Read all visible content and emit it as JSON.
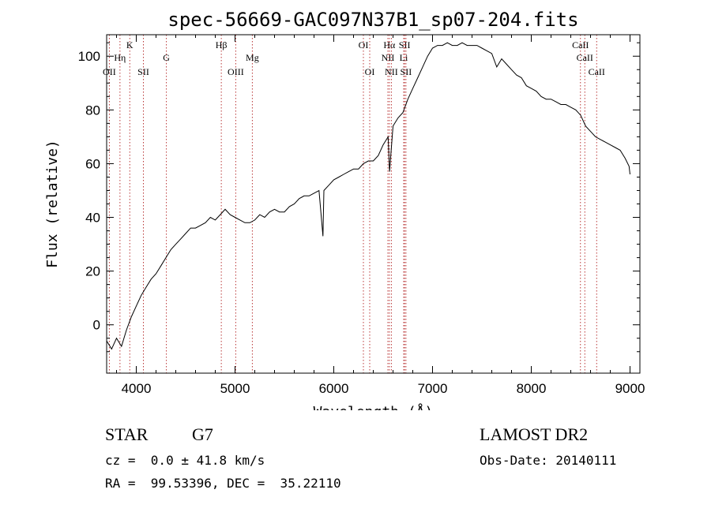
{
  "chart_data": {
    "type": "line",
    "title": "spec-56669-GAC097N37B1_sp07-204.fits",
    "xlabel": "Wavelength (Å)",
    "ylabel": "Flux (relative)",
    "xlim": [
      3700,
      9100
    ],
    "ylim": [
      -18,
      108
    ],
    "x_ticks": [
      4000,
      5000,
      6000,
      7000,
      8000,
      9000
    ],
    "y_ticks": [
      0,
      20,
      40,
      60,
      80,
      100
    ],
    "grid": false,
    "line_color": "#000000",
    "marker_color": "#b22222",
    "series": [
      {
        "x": [
          3700,
          3750,
          3800,
          3850,
          3900,
          3950,
          4000,
          4050,
          4100,
          4150,
          4200,
          4250,
          4300,
          4350,
          4400,
          4450,
          4500,
          4550,
          4600,
          4650,
          4700,
          4750,
          4800,
          4850,
          4900,
          4950,
          5000,
          5050,
          5100,
          5150,
          5200,
          5250,
          5300,
          5350,
          5400,
          5450,
          5500,
          5550,
          5600,
          5650,
          5700,
          5750,
          5800,
          5850,
          5890,
          5900,
          5950,
          6000,
          6050,
          6100,
          6150,
          6200,
          6250,
          6300,
          6350,
          6400,
          6450,
          6500,
          6550,
          6565,
          6600,
          6650,
          6700,
          6750,
          6800,
          6850,
          6900,
          6950,
          7000,
          7050,
          7100,
          7150,
          7200,
          7250,
          7300,
          7350,
          7400,
          7450,
          7500,
          7550,
          7600,
          7650,
          7700,
          7750,
          7800,
          7850,
          7900,
          7950,
          8000,
          8050,
          8100,
          8150,
          8200,
          8250,
          8300,
          8350,
          8400,
          8450,
          8500,
          8550,
          8600,
          8650,
          8700,
          8750,
          8800,
          8850,
          8900,
          8950,
          8990,
          9000
        ],
        "y": [
          -6,
          -9,
          -5,
          -8,
          -2,
          3,
          7,
          11,
          14,
          17,
          19,
          22,
          25,
          28,
          30,
          32,
          34,
          36,
          36,
          37,
          38,
          40,
          39,
          41,
          43,
          41,
          40,
          39,
          38,
          38,
          39,
          41,
          40,
          42,
          43,
          42,
          42,
          44,
          45,
          47,
          48,
          48,
          49,
          50,
          33,
          50,
          52,
          54,
          55,
          56,
          57,
          58,
          58,
          60,
          61,
          61,
          63,
          67,
          70,
          57,
          74,
          77,
          79,
          84,
          88,
          92,
          96,
          100,
          103,
          104,
          104,
          105,
          104,
          104,
          105,
          104,
          104,
          104,
          103,
          102,
          101,
          96,
          99,
          97,
          95,
          93,
          92,
          89,
          88,
          87,
          85,
          84,
          84,
          83,
          82,
          82,
          81,
          80,
          78,
          74,
          72,
          70,
          69,
          68,
          67,
          66,
          65,
          62,
          59,
          56
        ]
      }
    ],
    "lines": [
      {
        "label": "OII",
        "x": 3727,
        "row": 3
      },
      {
        "label": "Hη",
        "x": 3835,
        "row": 2
      },
      {
        "label": "K",
        "x": 3934,
        "row": 1
      },
      {
        "label": "SII",
        "x": 4072,
        "row": 3
      },
      {
        "label": "G",
        "x": 4305,
        "row": 2
      },
      {
        "label": "Hβ",
        "x": 4861,
        "row": 1
      },
      {
        "label": "OIII",
        "x": 5007,
        "row": 3
      },
      {
        "label": "Mg",
        "x": 5175,
        "row": 2
      },
      {
        "label": "OI",
        "x": 6300,
        "row": 1
      },
      {
        "label": "OI",
        "x": 6364,
        "row": 3
      },
      {
        "label": "Hα",
        "x": 6563,
        "row": 1
      },
      {
        "label": "NII",
        "x": 6548,
        "row": 2
      },
      {
        "label": "NII",
        "x": 6583,
        "row": 3
      },
      {
        "label": "SII",
        "x": 6717,
        "row": 1
      },
      {
        "label": "Li",
        "x": 6708,
        "row": 2
      },
      {
        "label": "SII",
        "x": 6731,
        "row": 3
      },
      {
        "label": "CaII",
        "x": 8498,
        "row": 1
      },
      {
        "label": "CaII",
        "x": 8542,
        "row": 2
      },
      {
        "label": "CaII",
        "x": 8662,
        "row": 3
      }
    ]
  },
  "info": {
    "object_class": "STAR",
    "subclass": "G7",
    "survey": "LAMOST DR2",
    "redshift": "cz =  0.0 ± 41.8 km/s",
    "obs_date": "Obs-Date: 20140111",
    "coords": "RA =  99.53396, DEC =  35.22110"
  }
}
